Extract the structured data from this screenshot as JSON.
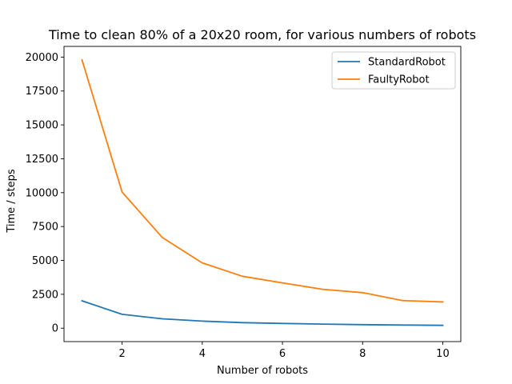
{
  "chart_data": {
    "type": "line",
    "title": "Time to clean 80% of a 20x20 room, for various numbers of robots",
    "xlabel": "Number of robots",
    "ylabel": "Time / steps",
    "xlim": [
      0.55,
      10.45
    ],
    "ylim": [
      -990,
      20790
    ],
    "xticks": [
      2,
      4,
      6,
      8,
      10
    ],
    "yticks": [
      0,
      2500,
      5000,
      7500,
      10000,
      12500,
      15000,
      17500,
      20000
    ],
    "grid": false,
    "legend_position": "top-right",
    "x": [
      1,
      2,
      3,
      4,
      5,
      6,
      7,
      8,
      9,
      10
    ],
    "series": [
      {
        "name": "StandardRobot",
        "color": "#1f77b4",
        "values": [
          2020,
          1020,
          690,
          520,
          410,
          350,
          300,
          260,
          230,
          210
        ]
      },
      {
        "name": "FaultyRobot",
        "color": "#ff7f0e",
        "values": [
          19800,
          10050,
          6700,
          4820,
          3830,
          3340,
          2870,
          2620,
          2040,
          1940
        ]
      }
    ]
  }
}
